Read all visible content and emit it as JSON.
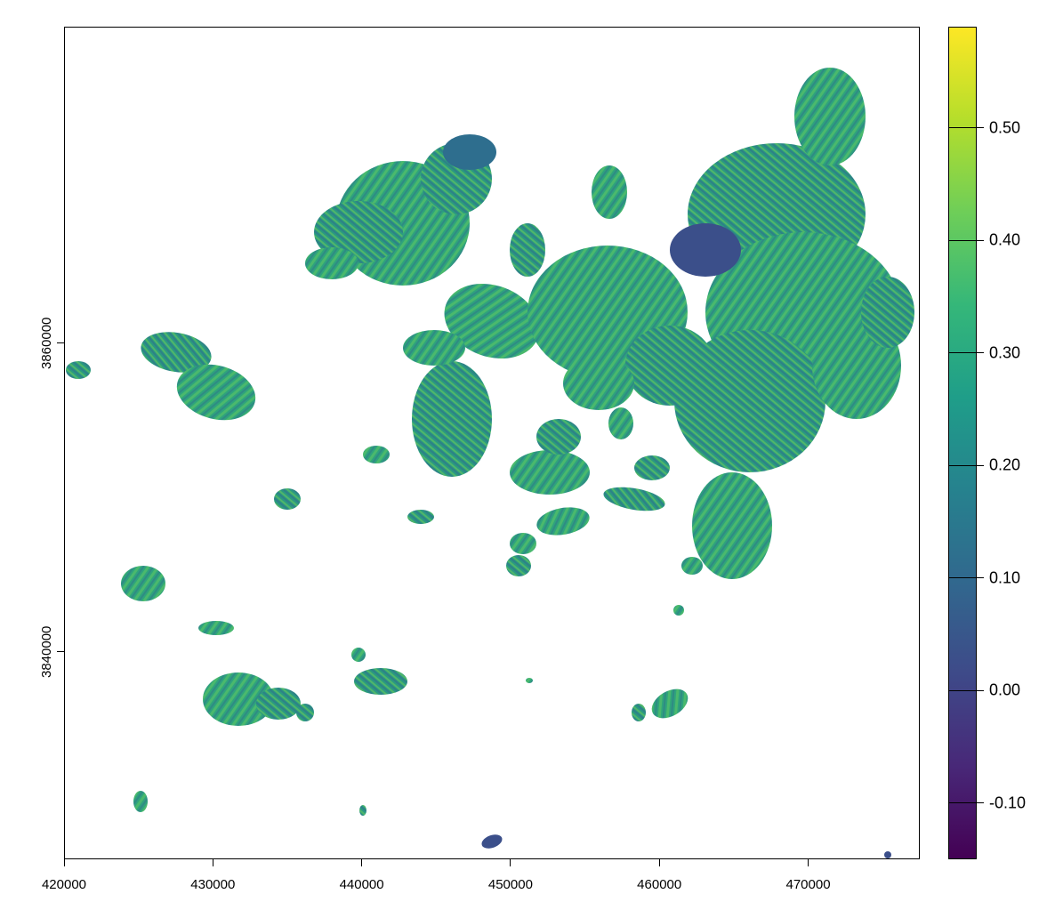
{
  "map": {
    "x_ticks": [
      "420000",
      "430000",
      "440000",
      "450000",
      "460000",
      "470000"
    ],
    "y_ticks": [
      "3860000",
      "3840000"
    ],
    "x_range": [
      420000,
      477500
    ],
    "y_range": [
      3826500,
      3880500
    ]
  },
  "legend": {
    "labels": [
      "0.50",
      "0.40",
      "0.30",
      "0.20",
      "0.10",
      "0.00",
      "-0.10"
    ],
    "values": [
      0.5,
      0.4,
      0.3,
      0.2,
      0.1,
      0.0,
      -0.1
    ],
    "range": [
      -0.15,
      0.59
    ],
    "colors": [
      "#440154",
      "#482878",
      "#3e4a89",
      "#31688e",
      "#26828e",
      "#1f9e89",
      "#35b779",
      "#6ece58",
      "#b5de2b",
      "#fde725"
    ]
  },
  "palette": {
    "land_main": "#2fa37c",
    "land_light": "#5cc863",
    "land_dark": "#2e6e8e",
    "land_deep": "#3b4f8a"
  }
}
